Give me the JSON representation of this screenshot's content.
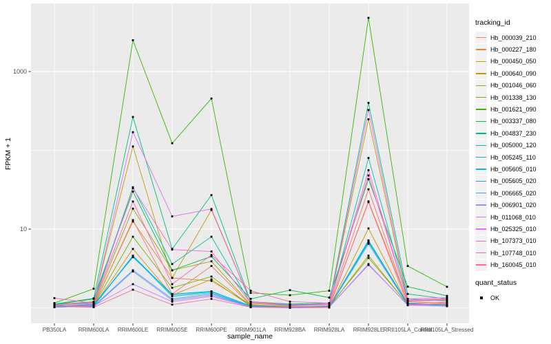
{
  "theme": {
    "background": "#FFFFFF",
    "panel_bg": "#EBEBEB",
    "grid": "#FFFFFF",
    "tick_text": "#4D4D4D",
    "tick_mark": "#333333",
    "point_color": "#000000"
  },
  "chart_data": {
    "type": "line",
    "xlabel": "sample_name",
    "ylabel": "FPKM + 1",
    "y_scale": "log10",
    "ylim": [
      0.66,
      7200
    ],
    "grid": "on",
    "legend_position": "right",
    "point_shape": "square",
    "y_ticks": [
      {
        "label": "1000",
        "value": 1000
      },
      {
        "label": "10",
        "value": 10
      }
    ],
    "y_gridlines": [
      {
        "value": 1000,
        "major": true
      },
      {
        "value": 100,
        "major": false
      },
      {
        "value": 10,
        "major": true
      },
      {
        "value": 1,
        "major": false
      }
    ],
    "categories": [
      "PB350LA",
      "RRIM600LA",
      "RRIM600LE",
      "RRIM600SE",
      "RRIM600PE",
      "RRIM901LA",
      "RRIM928BA",
      "RRIM928LA",
      "RRIM928LE",
      "RRII105LA_Control",
      "RRII105LA_Stressed"
    ],
    "series": [
      {
        "name": "Hb_000039_210",
        "color": "#F8766D",
        "values": [
          1.08,
          1.05,
          13,
          1.5,
          3.4,
          1.08,
          1.03,
          1.06,
          32,
          1.15,
          1.18
        ]
      },
      {
        "name": "Hb_000227_180",
        "color": "#EA8331",
        "values": [
          1.05,
          1.08,
          12.5,
          2.4,
          2.2,
          1.1,
          1.04,
          1.02,
          22.5,
          1.2,
          1.15
        ]
      },
      {
        "name": "Hb_000450_050",
        "color": "#D89000",
        "values": [
          1.02,
          1.05,
          5.6,
          1.45,
          2.3,
          1.05,
          1.02,
          1.01,
          10.2,
          1.1,
          1.08
        ]
      },
      {
        "name": "Hb_000640_090",
        "color": "#C09B00",
        "values": [
          1.1,
          1.2,
          112,
          2.4,
          17.5,
          1.18,
          1.08,
          1.12,
          248,
          1.25,
          1.28
        ]
      },
      {
        "name": "Hb_001046_060",
        "color": "#A3A500",
        "values": [
          1.04,
          1.1,
          18.2,
          3.0,
          3.9,
          1.1,
          1.03,
          1.05,
          4.3,
          1.12,
          1.1
        ]
      },
      {
        "name": "Hb_001338_130",
        "color": "#7CAE00",
        "values": [
          1.02,
          1.06,
          8,
          1.8,
          2.5,
          1.06,
          1.01,
          1.02,
          4.6,
          1.1,
          1.06
        ]
      },
      {
        "name": "Hb_001621_090",
        "color": "#39B600",
        "values": [
          1.15,
          1.75,
          2500,
          123,
          455,
          1.55,
          1.45,
          1.65,
          4800,
          3.4,
          1.85
        ]
      },
      {
        "name": "Hb_003337_080",
        "color": "#00BB4E",
        "values": [
          1.1,
          1.3,
          30,
          3.0,
          4.5,
          1.3,
          1.68,
          1.35,
          43,
          1.86,
          1.42
        ]
      },
      {
        "name": "Hb_004837_230",
        "color": "#00BF7D",
        "values": [
          1.12,
          1.32,
          265,
          5.6,
          27,
          1.2,
          1.12,
          1.15,
          400,
          1.5,
          1.3
        ]
      },
      {
        "name": "Hb_005000_120",
        "color": "#00C1A3",
        "values": [
          1.08,
          1.18,
          34,
          3.6,
          8,
          1.14,
          1.08,
          1.1,
          80,
          1.3,
          1.22
        ]
      },
      {
        "name": "Hb_005245_110",
        "color": "#00BFC4",
        "values": [
          1.03,
          1.06,
          4.6,
          1.45,
          1.6,
          1.05,
          1.02,
          1.03,
          7.2,
          1.12,
          1.1
        ]
      },
      {
        "name": "Hb_005605_010",
        "color": "#00BAE0",
        "values": [
          1.02,
          1.05,
          4.5,
          1.4,
          1.55,
          1.03,
          1.01,
          1.02,
          7.0,
          1.1,
          1.06
        ]
      },
      {
        "name": "Hb_005605_020",
        "color": "#00B0F6",
        "values": [
          1.05,
          1.1,
          4.4,
          1.5,
          1.62,
          1.06,
          1.02,
          1.04,
          6.8,
          1.14,
          1.1
        ]
      },
      {
        "name": "Hb_006665_020",
        "color": "#35A2FF",
        "values": [
          1.02,
          1.05,
          3.0,
          1.3,
          1.5,
          1.03,
          1.01,
          1.02,
          6.5,
          1.1,
          1.05
        ]
      },
      {
        "name": "Hb_006901_020",
        "color": "#9590FF",
        "values": [
          1.04,
          1.03,
          2.9,
          1.25,
          1.45,
          1.02,
          1.01,
          1.02,
          3.6,
          1.08,
          1.06
        ]
      },
      {
        "name": "Hb_011068_010",
        "color": "#C77CFF",
        "values": [
          1.03,
          1.06,
          2.0,
          1.2,
          1.4,
          1.03,
          1.01,
          1.02,
          3.5,
          1.1,
          1.07
        ]
      },
      {
        "name": "Hb_025325_010",
        "color": "#E76BF3",
        "values": [
          1.1,
          1.15,
          170,
          14.5,
          18,
          1.2,
          1.1,
          1.12,
          325,
          1.3,
          1.35
        ]
      },
      {
        "name": "Hb_107373_010",
        "color": "#FA62DB",
        "values": [
          1.1,
          1.12,
          33,
          5.5,
          5.2,
          1.15,
          1.06,
          1.1,
          56,
          1.22,
          1.26
        ]
      },
      {
        "name": "Hb_107748_010",
        "color": "#FF62BC",
        "values": [
          1.33,
          1.15,
          22.4,
          2.0,
          4.7,
          1.65,
          1.2,
          1.15,
          48,
          1.25,
          1.3
        ]
      },
      {
        "name": "Hb_160045_010",
        "color": "#FF6A98",
        "values": [
          1.04,
          1.02,
          1.7,
          1.1,
          1.3,
          1.02,
          1.0,
          1.01,
          22,
          1.1,
          1.14
        ]
      }
    ],
    "legend": {
      "color_title": "tracking_id",
      "shape_title": "quant_status",
      "shape_items": [
        {
          "label": "OK"
        }
      ]
    }
  }
}
